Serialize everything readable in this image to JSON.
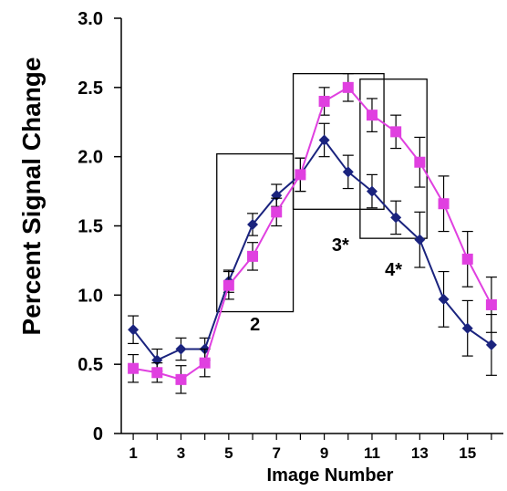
{
  "chart_data": {
    "type": "line",
    "ylabel": "Percent Signal Change",
    "xlabel": "Image Number",
    "xlim": [
      0.5,
      16.5
    ],
    "ylim": [
      0,
      3.0
    ],
    "y_ticks": [
      0,
      0.5,
      1.0,
      1.5,
      2.0,
      2.5,
      3.0
    ],
    "y_tick_labels": [
      "0",
      "0.5",
      "1.0",
      "1.5",
      "2.0",
      "2.5",
      "3.0"
    ],
    "x_ticks": [
      1,
      3,
      5,
      7,
      9,
      11,
      13,
      15
    ],
    "x_tick_labels": [
      "1",
      "3",
      "5",
      "7",
      "9",
      "11",
      "13",
      "15"
    ],
    "grid": false,
    "x": [
      1,
      2,
      3,
      4,
      5,
      6,
      7,
      8,
      9,
      10,
      11,
      12,
      13,
      14,
      15,
      16
    ],
    "series": [
      {
        "color": "#1a237e",
        "marker": "diamond",
        "values": [
          0.75,
          0.53,
          0.61,
          0.61,
          1.1,
          1.51,
          1.72,
          1.87,
          2.12,
          1.89,
          1.75,
          1.56,
          1.4,
          0.97,
          0.76,
          0.64
        ],
        "errors": [
          0.1,
          0.08,
          0.08,
          0.08,
          0.08,
          0.08,
          0.08,
          0.12,
          0.12,
          0.12,
          0.12,
          0.12,
          0.2,
          0.2,
          0.2,
          0.22
        ]
      },
      {
        "color": "#e040e0",
        "marker": "square",
        "values": [
          0.47,
          0.44,
          0.39,
          0.51,
          1.07,
          1.28,
          1.6,
          1.87,
          2.4,
          2.5,
          2.3,
          2.18,
          1.96,
          1.66,
          1.26,
          0.93
        ],
        "errors": [
          0.1,
          0.07,
          0.1,
          0.1,
          0.1,
          0.1,
          0.1,
          0.12,
          0.1,
          0.1,
          0.12,
          0.12,
          0.18,
          0.2,
          0.2,
          0.2
        ]
      }
    ],
    "annotations": [
      {
        "label": "2",
        "x_range": [
          4.5,
          7.7
        ],
        "y_range": [
          0.88,
          2.02
        ]
      },
      {
        "label": "3*",
        "x_range": [
          7.7,
          11.5
        ],
        "y_range": [
          1.62,
          2.6
        ]
      },
      {
        "label": "4*",
        "x_range": [
          10.5,
          13.3
        ],
        "y_range": [
          1.41,
          2.56
        ]
      }
    ]
  }
}
